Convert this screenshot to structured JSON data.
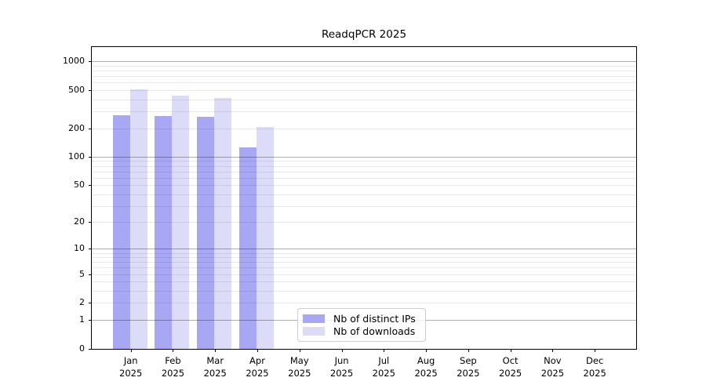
{
  "window": {
    "background": "#ffffff"
  },
  "chart_data": {
    "type": "bar",
    "title": "ReadqPCR 2025",
    "xlabel": "",
    "ylabel": "",
    "scale": "log10(value+1)",
    "grid": true,
    "legend_position": "lower center",
    "ylim": [
      0,
      1420
    ],
    "y_ticks": [
      0,
      1,
      2,
      5,
      10,
      20,
      50,
      100,
      200,
      500,
      1000
    ],
    "minor_grid_values": [
      2,
      3,
      4,
      5,
      6,
      7,
      8,
      9,
      20,
      30,
      40,
      50,
      60,
      70,
      80,
      90,
      200,
      300,
      400,
      500,
      600,
      700,
      800,
      900
    ],
    "major_grid_values": [
      1,
      10,
      100,
      1000
    ],
    "categories": [
      "Jan",
      "Feb",
      "Mar",
      "Apr",
      "May",
      "Jun",
      "Jul",
      "Aug",
      "Sep",
      "Oct",
      "Nov",
      "Dec"
    ],
    "year_label": "2025",
    "series": [
      {
        "name": "Nb of distinct IPs",
        "color": "#a7a7f3",
        "values": [
          273,
          270,
          262,
          126,
          null,
          null,
          null,
          null,
          null,
          null,
          null,
          null
        ]
      },
      {
        "name": "Nb of downloads",
        "color": "#dcdcf8",
        "values": [
          512,
          440,
          418,
          204,
          null,
          null,
          null,
          null,
          null,
          null,
          null,
          null
        ]
      }
    ]
  },
  "colors": {
    "major_grid": "rgba(0,0,0,0.32)",
    "minor_grid": "rgba(0,0,0,0.085)",
    "axis": "#000000",
    "legend_border": "#cccccc"
  }
}
